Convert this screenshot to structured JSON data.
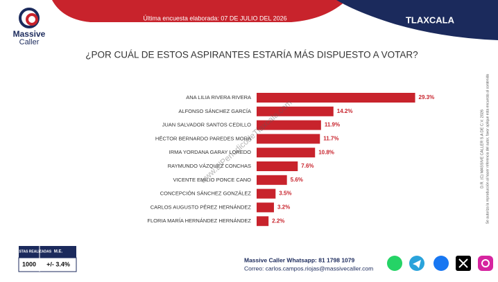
{
  "header": {
    "brand": "Massive",
    "brand_sub": "Caller",
    "survey_date": "Última encuesta elaborada: 07 DE JULIO DEL 2026",
    "state": "TLAXCALA"
  },
  "chart_data": {
    "type": "bar",
    "orientation": "horizontal",
    "title": "¿POR CUÁL DE ESTOS ASPIRANTES ESTARÍA MÁS DISPUESTO A VOTAR?",
    "categories": [
      "ANA LILIA RIVERA RIVERA",
      "ALFONSO SÁNCHEZ GARCÍA",
      "JUAN SALVADOR SANTOS CEDILLO",
      "HÉCTOR BERNARDO PAREDES MORA",
      "IRMA YORDANA GARAY LOREDO",
      "RAYMUNDO VÁZQUEZ CONCHAS",
      "VICENTE EMILIO PONCE CANO",
      "CONCEPCIÓN SÁNCHEZ GONZÁLEZ",
      "CARLOS AUGUSTO PÉREZ HERNÁNDEZ",
      "FLORIA MARÍA HERNÁNDEZ HERNÁNDEZ"
    ],
    "values": [
      29.3,
      14.2,
      11.9,
      11.7,
      10.8,
      7.6,
      5.6,
      3.5,
      3.2,
      2.2
    ],
    "value_labels": [
      "29.3%",
      "14.2%",
      "11.9%",
      "11.7%",
      "10.8%",
      "7.6%",
      "5.6%",
      "3.5%",
      "3.2%",
      "2.2%"
    ],
    "color": "#c8232c"
  },
  "watermark": "www.ElPeriodicodeTlaxcala.com",
  "side_note": [
    "D.R. (C) MASSIVE CALLER S.A DE C.V. 2026",
    "Se autoriza la reproducción al hacer referencia del autor, favor aplique esta encuesta al contenido"
  ],
  "footer": {
    "table": {
      "headers": [
        "ENCUESTAS REALIZADAS",
        "M.E."
      ],
      "row": [
        "1000",
        "+/- 3.4%"
      ]
    },
    "whatsapp": "Massive Caller Whatsapp: 81 1798 1079",
    "email": "Correo: carlos.campos.riojas@massivecaller.com"
  }
}
